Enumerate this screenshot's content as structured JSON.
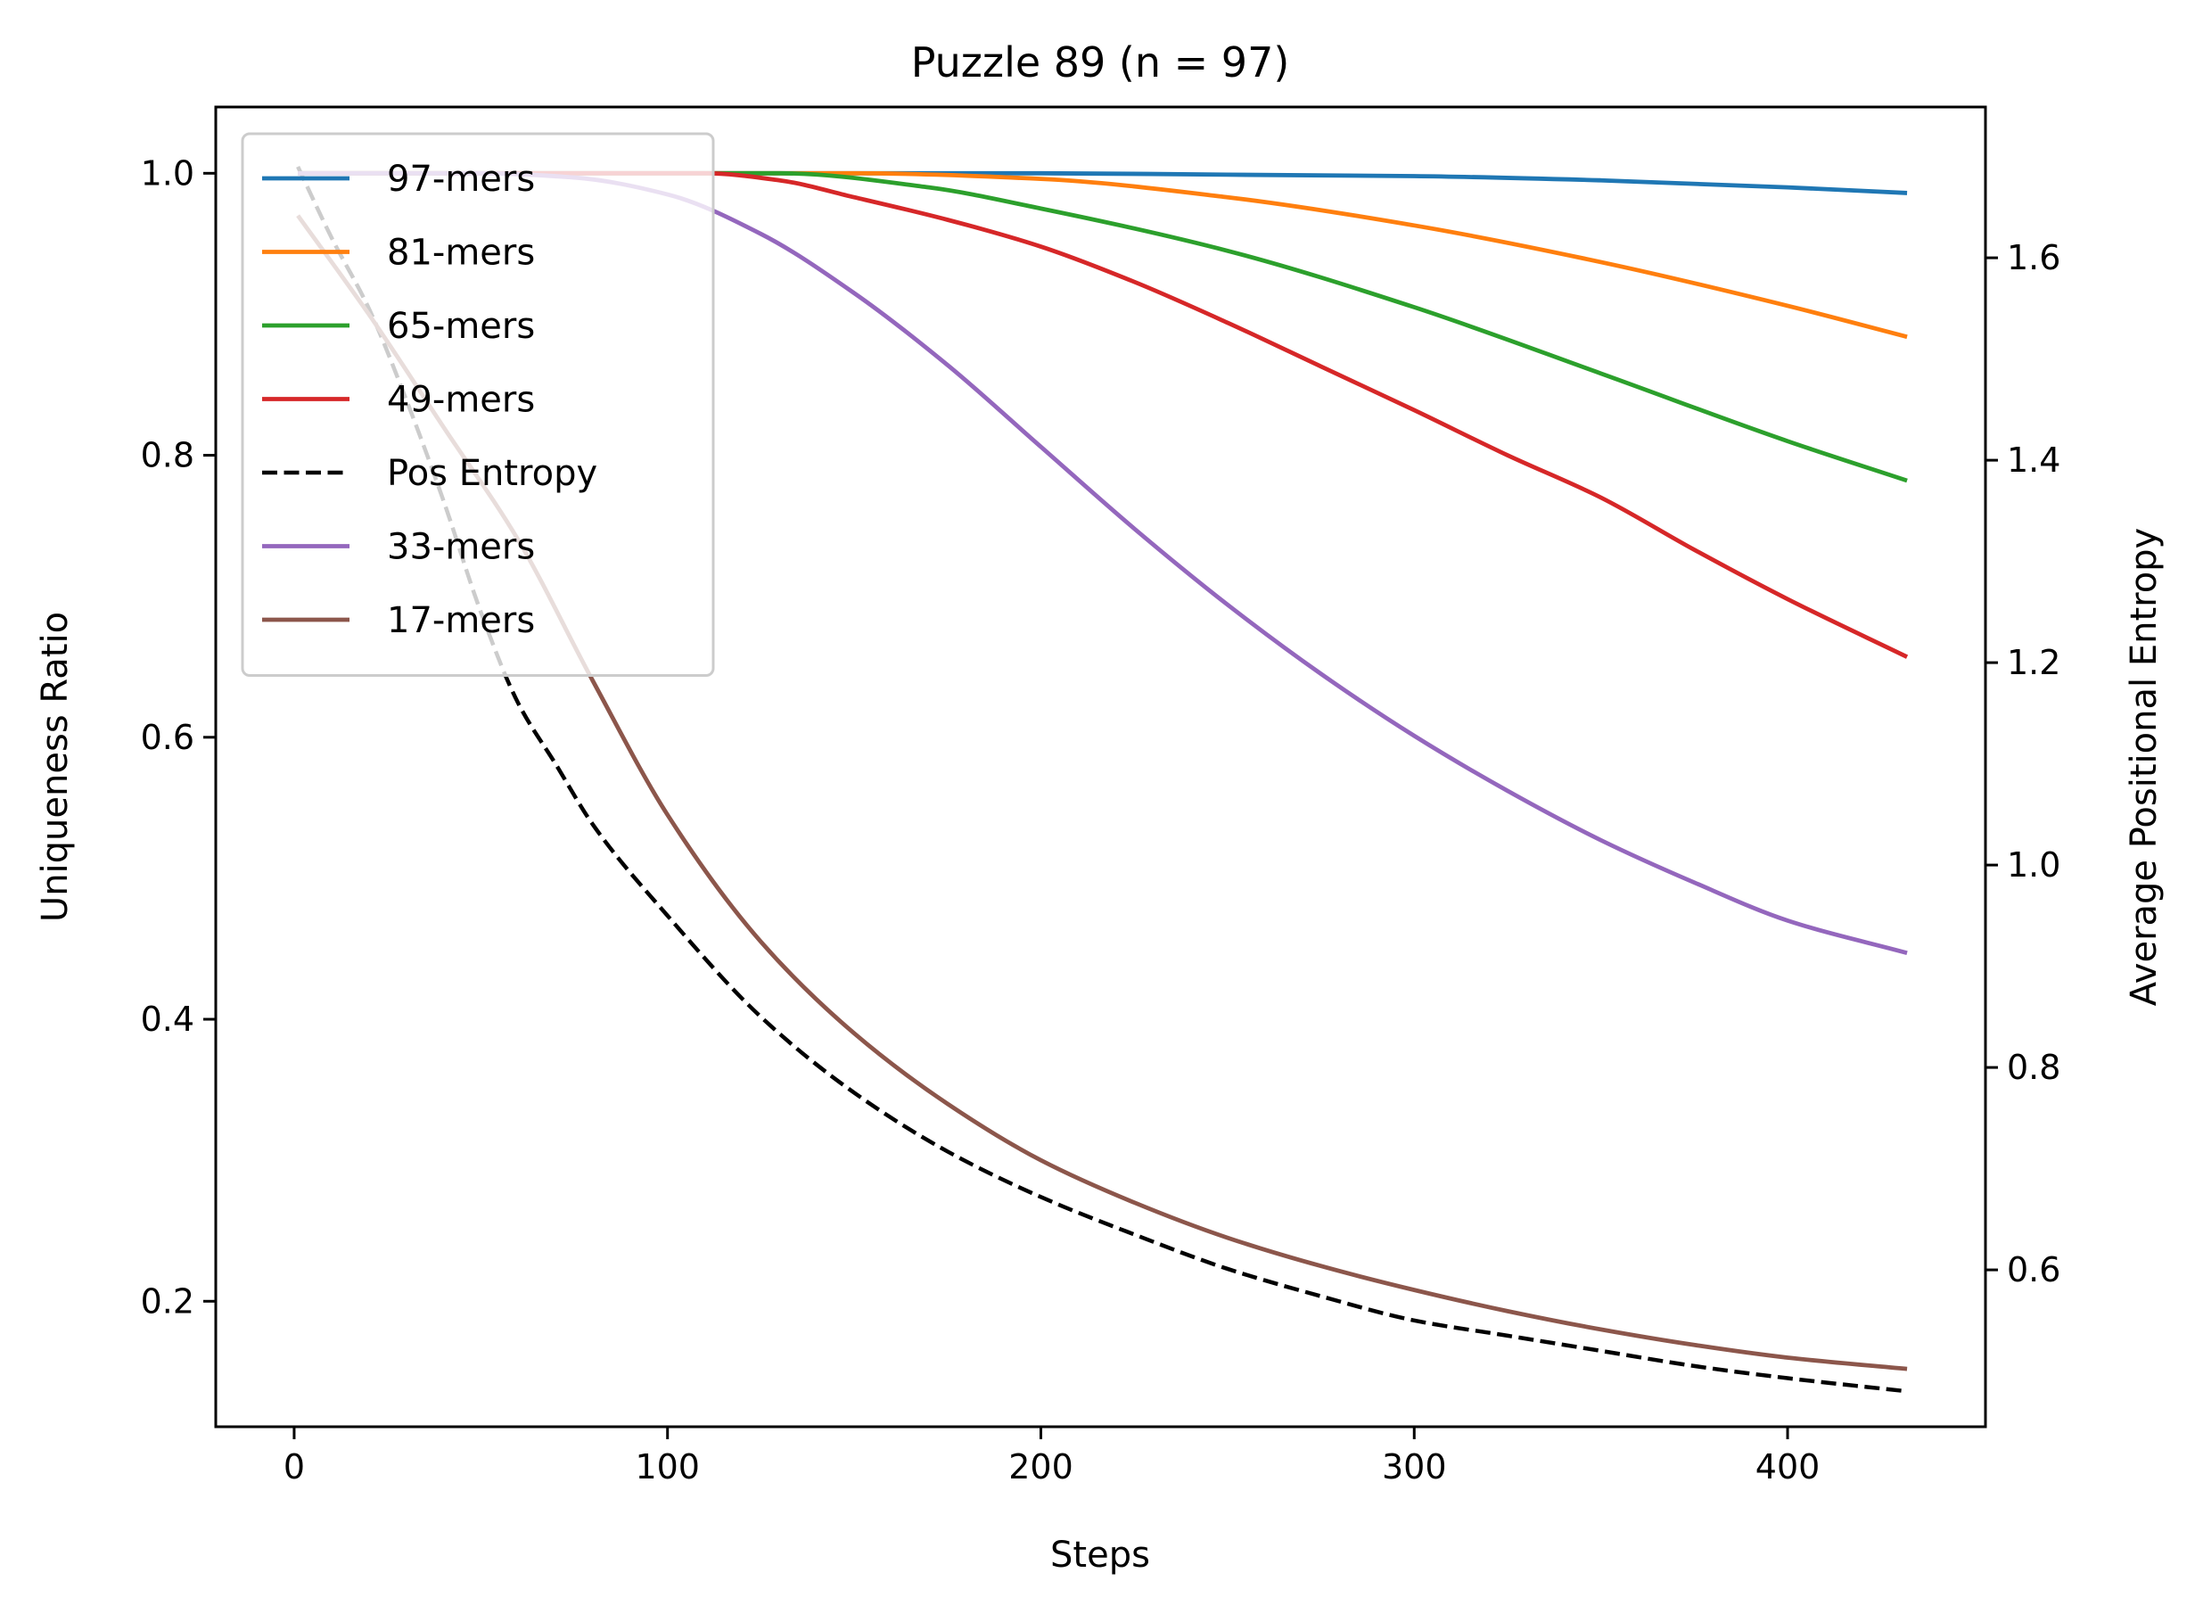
{
  "chart_data": {
    "type": "line",
    "title": "Puzzle 89 (n = 97)",
    "xlabel": "Steps",
    "ylabel": "Uniqueness Ratio",
    "y2label": "Average Positional Entropy",
    "xlim": [
      -21,
      453
    ],
    "ylim": [
      0.111,
      1.047
    ],
    "y2lim": [
      0.445,
      1.749
    ],
    "xticks": [
      0,
      100,
      200,
      300,
      400
    ],
    "yticks": [
      0.2,
      0.4,
      0.6,
      0.8,
      1.0
    ],
    "y2ticks": [
      0.6,
      0.8,
      1.0,
      1.2,
      1.4,
      1.6
    ],
    "legend_position": "upper-left",
    "legend_order": [
      "97-mers",
      "81-mers",
      "65-mers",
      "49-mers",
      "Pos Entropy",
      "33-mers",
      "17-mers"
    ],
    "series": [
      {
        "name": "97-mers",
        "axis": "left",
        "color": "#1f77b4",
        "style": "solid",
        "x": [
          1,
          100,
          200,
          250,
          300,
          350,
          400,
          432
        ],
        "y": [
          1.0,
          1.0,
          1.0,
          0.999,
          0.998,
          0.995,
          0.99,
          0.986
        ]
      },
      {
        "name": "81-mers",
        "axis": "left",
        "color": "#ff7f0e",
        "style": "solid",
        "x": [
          1,
          150,
          200,
          250,
          300,
          350,
          400,
          432
        ],
        "y": [
          1.0,
          1.0,
          0.996,
          0.983,
          0.963,
          0.937,
          0.906,
          0.884
        ]
      },
      {
        "name": "65-mers",
        "axis": "left",
        "color": "#2ca02c",
        "style": "solid",
        "x": [
          1,
          130,
          170,
          200,
          250,
          300,
          350,
          400,
          432
        ],
        "y": [
          1.0,
          1.0,
          0.99,
          0.975,
          0.945,
          0.905,
          0.858,
          0.81,
          0.782
        ]
      },
      {
        "name": "49-mers",
        "axis": "left",
        "color": "#d62728",
        "style": "solid",
        "x": [
          1,
          110,
          130,
          150,
          175,
          200,
          225,
          250,
          275,
          300,
          325,
          350,
          375,
          400,
          432
        ],
        "y": [
          1.0,
          1.0,
          0.995,
          0.983,
          0.967,
          0.948,
          0.923,
          0.894,
          0.863,
          0.832,
          0.8,
          0.77,
          0.733,
          0.698,
          0.657
        ]
      },
      {
        "name": "Pos Entropy",
        "axis": "right",
        "color": "#000000",
        "style": "dashed",
        "x": [
          1,
          10,
          20,
          30,
          40,
          50,
          60,
          70,
          80,
          100,
          125,
          150,
          175,
          200,
          225,
          250,
          275,
          300,
          325,
          350,
          375,
          400,
          432
        ],
        "y": [
          1.69,
          1.62,
          1.55,
          1.46,
          1.36,
          1.25,
          1.16,
          1.1,
          1.04,
          0.95,
          0.85,
          0.775,
          0.717,
          0.672,
          0.635,
          0.601,
          0.574,
          0.55,
          0.535,
          0.52,
          0.505,
          0.493,
          0.48
        ]
      },
      {
        "name": "33-mers",
        "axis": "left",
        "color": "#9467bd",
        "style": "solid",
        "x": [
          1,
          50,
          75,
          100,
          125,
          150,
          175,
          200,
          225,
          250,
          275,
          300,
          325,
          350,
          375,
          400,
          432
        ],
        "y": [
          1.0,
          1.0,
          0.997,
          0.985,
          0.957,
          0.915,
          0.864,
          0.806,
          0.748,
          0.694,
          0.645,
          0.601,
          0.562,
          0.527,
          0.497,
          0.47,
          0.447
        ]
      },
      {
        "name": "17-mers",
        "axis": "left",
        "color": "#8c564b",
        "style": "solid",
        "x": [
          1,
          20,
          40,
          60,
          80,
          100,
          125,
          150,
          175,
          200,
          225,
          250,
          275,
          300,
          325,
          350,
          375,
          400,
          432
        ],
        "y": [
          0.97,
          0.9,
          0.82,
          0.74,
          0.64,
          0.545,
          0.455,
          0.39,
          0.34,
          0.3,
          0.27,
          0.245,
          0.225,
          0.208,
          0.193,
          0.18,
          0.169,
          0.16,
          0.152
        ]
      }
    ]
  }
}
